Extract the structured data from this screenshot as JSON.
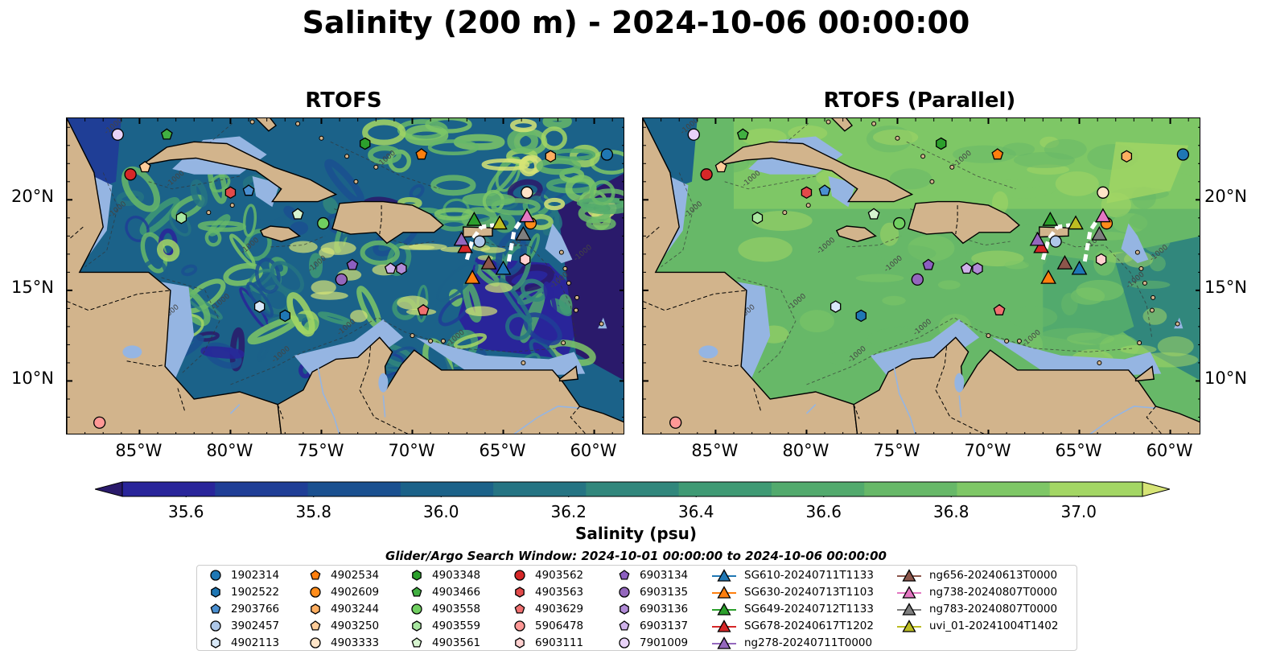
{
  "title": "Salinity (200 m) - 2024-10-06 00:00:00",
  "panels": [
    {
      "title": "RTOFS",
      "variant": "base"
    },
    {
      "title": "RTOFS (Parallel)",
      "variant": "parallel"
    }
  ],
  "lat_labels": [
    "20°N",
    "15°N",
    "10°N"
  ],
  "lon_labels": [
    "85°W",
    "80°W",
    "75°W",
    "70°W",
    "65°W",
    "60°W"
  ],
  "colorbar": {
    "label": "Salinity (psu)",
    "min": 35.5,
    "max": 37.1,
    "ticks": [
      "35.6",
      "35.8",
      "36.0",
      "36.2",
      "36.4",
      "36.6",
      "36.8",
      "37.0"
    ],
    "tick_values": [
      35.6,
      35.8,
      36.0,
      36.2,
      36.4,
      36.6,
      36.8,
      37.0
    ],
    "colors": [
      "#2a1a6b",
      "#29259a",
      "#1f3e96",
      "#1a5090",
      "#1b6289",
      "#257483",
      "#31877c",
      "#3f9a74",
      "#52aa6d",
      "#67b868",
      "#7ec766",
      "#a3d664",
      "#d6e476"
    ]
  },
  "legend_title": "Glider/Argo Search Window: 2024-10-01 00:00:00 to 2024-10-06 00:00:00",
  "legend_items": [
    {
      "label": "1902314",
      "marker": "circle",
      "color": "#1f77b4"
    },
    {
      "label": "1902522",
      "marker": "hexagon",
      "color": "#1f77b4"
    },
    {
      "label": "2903766",
      "marker": "pentagon",
      "color": "#4a8fd0"
    },
    {
      "label": "3902457",
      "marker": "circle",
      "color": "#aec7e8"
    },
    {
      "label": "4902113",
      "marker": "hexagon",
      "color": "#d8e8f8"
    },
    {
      "label": "4902534",
      "marker": "pentagon",
      "color": "#ff7f0e"
    },
    {
      "label": "4902609",
      "marker": "circle",
      "color": "#ff8c1a"
    },
    {
      "label": "4903244",
      "marker": "hexagon",
      "color": "#ffae60"
    },
    {
      "label": "4903250",
      "marker": "pentagon",
      "color": "#ffcc99"
    },
    {
      "label": "4903333",
      "marker": "circle",
      "color": "#ffe5c8"
    },
    {
      "label": "4903348",
      "marker": "hexagon",
      "color": "#2ca02c"
    },
    {
      "label": "4903466",
      "marker": "pentagon",
      "color": "#41b041"
    },
    {
      "label": "4903558",
      "marker": "circle",
      "color": "#70cf60"
    },
    {
      "label": "4903559",
      "marker": "hexagon",
      "color": "#a8e6a0"
    },
    {
      "label": "4903561",
      "marker": "pentagon",
      "color": "#d7f5d0"
    },
    {
      "label": "4903562",
      "marker": "circle",
      "color": "#d62728"
    },
    {
      "label": "4903563",
      "marker": "hexagon",
      "color": "#e24a4a"
    },
    {
      "label": "4903629",
      "marker": "pentagon",
      "color": "#f07070"
    },
    {
      "label": "5906478",
      "marker": "circle",
      "color": "#ff9896"
    },
    {
      "label": "6903111",
      "marker": "hexagon",
      "color": "#ffd0cf"
    },
    {
      "label": "6903134",
      "marker": "pentagon",
      "color": "#8c5fc0"
    },
    {
      "label": "6903135",
      "marker": "circle",
      "color": "#9467bd"
    },
    {
      "label": "6903136",
      "marker": "hexagon",
      "color": "#b08ad6"
    },
    {
      "label": "6903137",
      "marker": "pentagon",
      "color": "#cfb2ea"
    },
    {
      "label": "7901009",
      "marker": "circle",
      "color": "#e8d2f8"
    },
    {
      "label": "SG610-20240711T1133",
      "marker": "triangle-line",
      "color": "#1f77b4"
    },
    {
      "label": "SG630-20240713T1103",
      "marker": "triangle-line",
      "color": "#ff7f0e"
    },
    {
      "label": "SG649-20240712T1133",
      "marker": "triangle-line",
      "color": "#2ca02c"
    },
    {
      "label": "SG678-20240617T1202",
      "marker": "triangle-line",
      "color": "#d62728"
    },
    {
      "label": "ng278-20240711T0000",
      "marker": "triangle-line",
      "color": "#9467bd"
    },
    {
      "label": "ng656-20240613T0000",
      "marker": "triangle-line",
      "color": "#8c564b"
    },
    {
      "label": "ng738-20240807T0000",
      "marker": "triangle-line",
      "color": "#e377c2"
    },
    {
      "label": "ng783-20240807T0000",
      "marker": "triangle-line",
      "color": "#7f7f7f"
    },
    {
      "label": "uvi_01-20241004T1402",
      "marker": "triangle-line",
      "color": "#bcbd22"
    }
  ],
  "map_extent": {
    "lon_min": -89,
    "lon_max": -58.3,
    "lat_min": 7,
    "lat_max": 24.5
  },
  "profiles": [
    {
      "id": "1902314",
      "lon": -59.3,
      "lat": 22.5
    },
    {
      "id": "1902522",
      "lon": -77.0,
      "lat": 13.6
    },
    {
      "id": "2903766",
      "lon": -79.0,
      "lat": 20.5
    },
    {
      "id": "3902457",
      "lon": -66.3,
      "lat": 17.7
    },
    {
      "id": "4902113",
      "lon": -78.4,
      "lat": 14.1
    },
    {
      "id": "4902534",
      "lon": -69.5,
      "lat": 22.5
    },
    {
      "id": "4902609",
      "lon": -63.5,
      "lat": 18.7
    },
    {
      "id": "4903244",
      "lon": -62.4,
      "lat": 22.4
    },
    {
      "id": "4903250",
      "lon": -84.7,
      "lat": 21.8
    },
    {
      "id": "4903333",
      "lon": -63.7,
      "lat": 20.4
    },
    {
      "id": "4903348",
      "lon": -72.6,
      "lat": 23.1
    },
    {
      "id": "4903466",
      "lon": -83.5,
      "lat": 23.6
    },
    {
      "id": "4903558",
      "lon": -74.9,
      "lat": 18.7
    },
    {
      "id": "4903559",
      "lon": -82.7,
      "lat": 19.0
    },
    {
      "id": "4903561",
      "lon": -76.3,
      "lat": 19.2
    },
    {
      "id": "4903562",
      "lon": -85.5,
      "lat": 21.4
    },
    {
      "id": "4903563",
      "lon": -80.0,
      "lat": 20.4
    },
    {
      "id": "4903629",
      "lon": -69.4,
      "lat": 13.9
    },
    {
      "id": "5906478",
      "lon": -87.2,
      "lat": 7.7
    },
    {
      "id": "6903111",
      "lon": -63.8,
      "lat": 16.7
    },
    {
      "id": "6903134",
      "lon": -73.3,
      "lat": 16.4
    },
    {
      "id": "6903135",
      "lon": -73.9,
      "lat": 15.6
    },
    {
      "id": "6903136",
      "lon": -70.6,
      "lat": 16.2
    },
    {
      "id": "6903137",
      "lon": -71.2,
      "lat": 16.2
    },
    {
      "id": "7901009",
      "lon": -86.2,
      "lat": 23.6
    },
    {
      "id": "SG610-20240711T1133",
      "lon": -65.0,
      "lat": 16.2
    },
    {
      "id": "SG630-20240713T1103",
      "lon": -66.7,
      "lat": 15.7
    },
    {
      "id": "SG649-20240712T1133",
      "lon": -66.6,
      "lat": 18.9
    },
    {
      "id": "SG678-20240617T1202",
      "lon": -67.1,
      "lat": 17.4
    },
    {
      "id": "ng278-20240711T0000",
      "lon": -67.3,
      "lat": 17.8
    },
    {
      "id": "ng656-20240613T0000",
      "lon": -65.8,
      "lat": 16.5
    },
    {
      "id": "ng738-20240807T0000",
      "lon": -63.7,
      "lat": 19.1
    },
    {
      "id": "ng783-20240807T0000",
      "lon": -63.9,
      "lat": 18.1
    },
    {
      "id": "uvi_01-20241004T1402",
      "lon": -65.2,
      "lat": 18.7
    }
  ]
}
